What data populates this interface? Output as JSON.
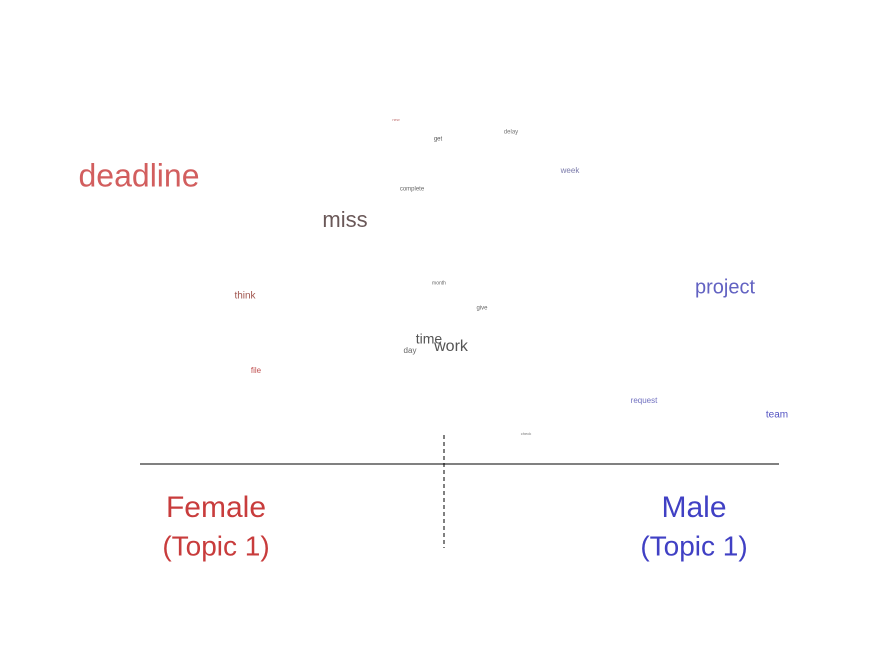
{
  "words": [
    "new",
    "get",
    "delay",
    "week",
    "deadline",
    "complete",
    "miss",
    "think",
    "month",
    "project",
    "give",
    "time",
    "work",
    "day",
    "file",
    "request",
    "team",
    "check"
  ],
  "left_label": [
    "Female",
    "(Topic 1)"
  ],
  "right_label": [
    "Male",
    "(Topic 1)"
  ]
}
